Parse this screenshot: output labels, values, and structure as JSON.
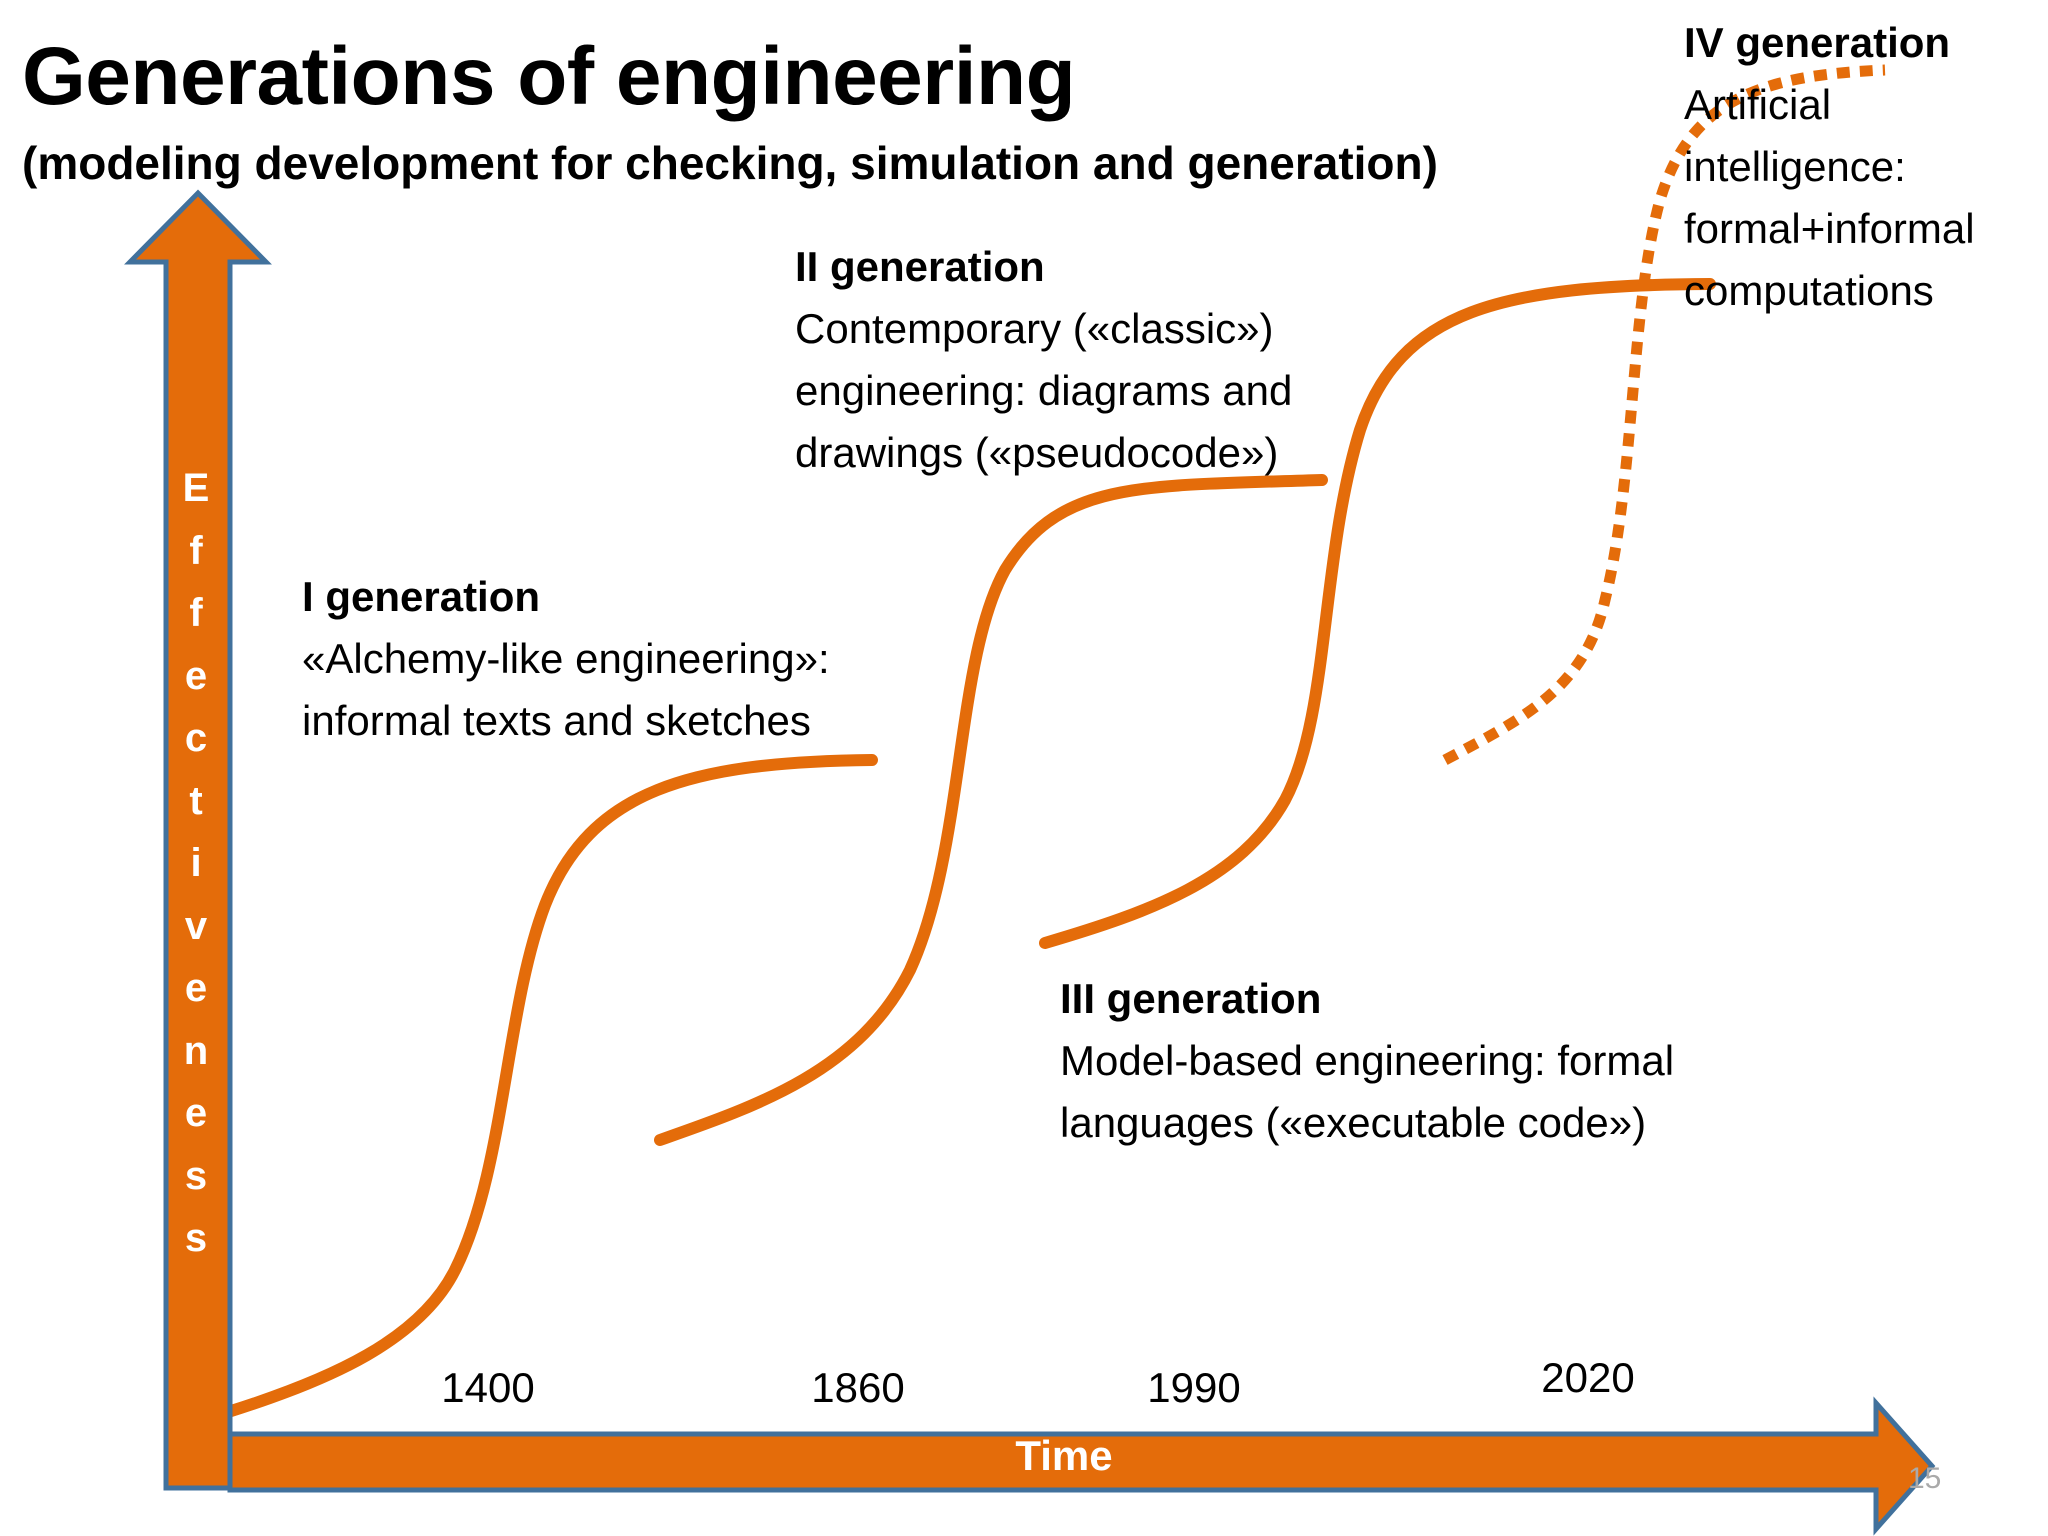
{
  "title": "Generations of engineering",
  "subtitle": "(modeling development for checking, simulation and generation)",
  "colors": {
    "accent": "#E46C0A",
    "outline": "#41719C",
    "text": "#000000",
    "label_on_accent": "#FFFFFF"
  },
  "y_axis_label": "Effectiveness",
  "x_axis_label": "Time",
  "ticks": [
    "1400",
    "1860",
    "1990",
    "2020"
  ],
  "generations": [
    {
      "title": "I generation",
      "lines": [
        "«Alchemy-like engineering»:",
        "informal texts and sketches"
      ]
    },
    {
      "title": "II generation",
      "lines": [
        "Contemporary («classic»)",
        "engineering: diagrams and",
        "drawings («pseudocode»)"
      ]
    },
    {
      "title": "III generation",
      "lines": [
        "Model-based engineering: formal",
        "languages («executable code»)"
      ]
    },
    {
      "title": "IV generation",
      "lines": [
        "Artificial",
        "intelligence:",
        "formal+informal",
        "computations"
      ]
    }
  ],
  "page_number": "15"
}
